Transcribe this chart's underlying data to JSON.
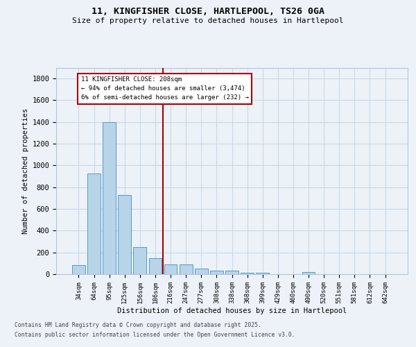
{
  "title_line1": "11, KINGFISHER CLOSE, HARTLEPOOL, TS26 0GA",
  "title_line2": "Size of property relative to detached houses in Hartlepool",
  "xlabel": "Distribution of detached houses by size in Hartlepool",
  "ylabel": "Number of detached properties",
  "categories": [
    "34sqm",
    "64sqm",
    "95sqm",
    "125sqm",
    "156sqm",
    "186sqm",
    "216sqm",
    "247sqm",
    "277sqm",
    "308sqm",
    "338sqm",
    "368sqm",
    "399sqm",
    "429sqm",
    "460sqm",
    "490sqm",
    "520sqm",
    "551sqm",
    "581sqm",
    "612sqm",
    "642sqm"
  ],
  "values": [
    85,
    925,
    1400,
    730,
    250,
    150,
    90,
    90,
    50,
    30,
    30,
    10,
    10,
    0,
    0,
    20,
    0,
    0,
    0,
    0,
    0
  ],
  "bar_color": "#b8d4e8",
  "bar_edge_color": "#5599cc",
  "grid_color": "#c8d8e8",
  "background_color": "#edf2f8",
  "vline_x": 5.5,
  "vline_color": "#aa0000",
  "annotation_text": "11 KINGFISHER CLOSE: 208sqm\n← 94% of detached houses are smaller (3,474)\n6% of semi-detached houses are larger (232) →",
  "annotation_box_facecolor": "#ffffff",
  "annotation_box_edgecolor": "#aa0000",
  "ylim": [
    0,
    1900
  ],
  "yticks": [
    0,
    200,
    400,
    600,
    800,
    1000,
    1200,
    1400,
    1600,
    1800
  ],
  "footer_line1": "Contains HM Land Registry data © Crown copyright and database right 2025.",
  "footer_line2": "Contains public sector information licensed under the Open Government Licence v3.0."
}
